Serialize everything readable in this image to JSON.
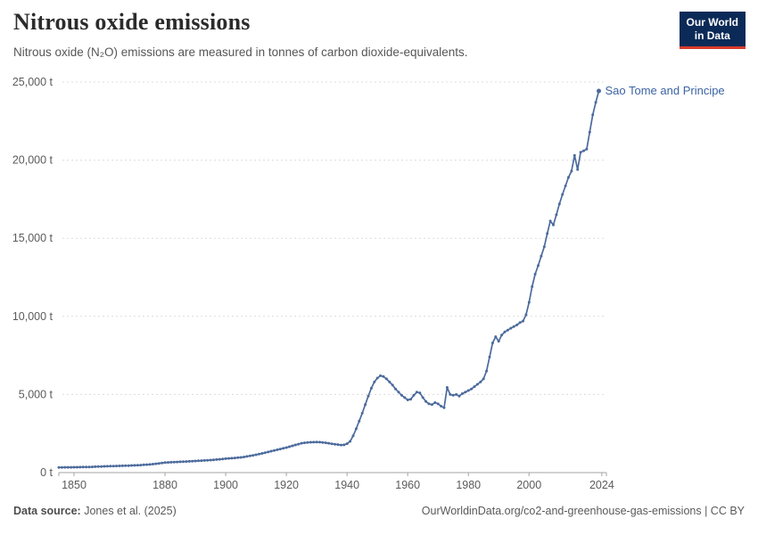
{
  "header": {
    "title": "Nitrous oxide emissions",
    "subtitle": "Nitrous oxide (N₂O) emissions are measured in tonnes of carbon dioxide-equivalents.",
    "logo": {
      "line1": "Our World",
      "line2": "in Data"
    }
  },
  "chart_data": {
    "type": "line",
    "title": "Nitrous oxide emissions",
    "subtitle": "Nitrous oxide (N₂O) emissions are measured in tonnes of carbon dioxide-equivalents.",
    "entity": "Sao Tome and Principe",
    "unit": "t",
    "xlabel": "",
    "ylabel": "",
    "xlim": [
      1845,
      2025.5
    ],
    "ylim": [
      0,
      25000
    ],
    "x_ticks": [
      1850,
      1880,
      1900,
      1920,
      1940,
      1960,
      1980,
      2000,
      2024
    ],
    "y_ticks": [
      0,
      5000,
      10000,
      15000,
      20000,
      25000
    ],
    "grid": "horizontal-dashed",
    "legend_position": "end-of-line-label",
    "line_color": "#4c6a9c",
    "label_color": "#3b63a3",
    "series": [
      {
        "name": "Sao Tome and Principe",
        "start_year": 1845,
        "end_year": 2023,
        "values": [
          330,
          332,
          334,
          336,
          338,
          340,
          345,
          350,
          353,
          356,
          360,
          367,
          374,
          381,
          390,
          400,
          405,
          410,
          416,
          423,
          430,
          436,
          442,
          448,
          454,
          460,
          470,
          482,
          494,
          507,
          520,
          542,
          565,
          590,
          615,
          640,
          650,
          660,
          670,
          680,
          690,
          700,
          710,
          720,
          730,
          740,
          752,
          764,
          776,
          788,
          800,
          817,
          834,
          852,
          870,
          890,
          905,
          920,
          936,
          953,
          970,
          1000,
          1032,
          1066,
          1102,
          1140,
          1183,
          1228,
          1274,
          1321,
          1370,
          1415,
          1460,
          1506,
          1552,
          1600,
          1655,
          1710,
          1768,
          1823,
          1880,
          1905,
          1925,
          1940,
          1948,
          1950,
          1945,
          1930,
          1905,
          1875,
          1845,
          1815,
          1790,
          1765,
          1775,
          1850,
          2000,
          2350,
          2800,
          3300,
          3800,
          4350,
          4900,
          5400,
          5800,
          6050,
          6200,
          6150,
          6000,
          5800,
          5600,
          5350,
          5150,
          4950,
          4800,
          4650,
          4700,
          4950,
          5150,
          5100,
          4800,
          4550,
          4400,
          4350,
          4480,
          4400,
          4250,
          4150,
          5450,
          5000,
          4950,
          5000,
          4900,
          5050,
          5150,
          5250,
          5350,
          5500,
          5650,
          5800,
          6000,
          6500,
          7400,
          8300,
          8700,
          8400,
          8800,
          9000,
          9120,
          9240,
          9350,
          9450,
          9600,
          9700,
          10100,
          10900,
          11900,
          12700,
          13250,
          13850,
          14450,
          15300,
          16100,
          15850,
          16500,
          17200,
          17800,
          18350,
          18900,
          19300,
          20300,
          19400,
          20500,
          20600,
          20700,
          21800,
          22900,
          23700,
          24430
        ]
      }
    ]
  },
  "footer": {
    "source_label": "Data source:",
    "source_value": "Jones et al. (2025)",
    "url": "OurWorldinData.org/co2-and-greenhouse-gas-emissions",
    "separator": " | ",
    "license": "CC BY"
  },
  "colors": {
    "logo_bg": "#0b2a57",
    "logo_accent": "#d73c2c",
    "line": "#4c6a9c",
    "grid": "#dcdcdc"
  }
}
